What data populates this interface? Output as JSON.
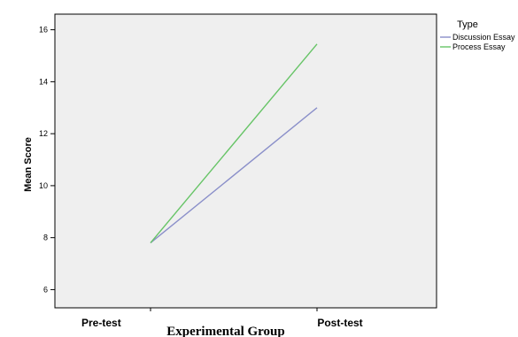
{
  "chart_data": {
    "type": "line",
    "title": "",
    "xlabel": "Experimental Group",
    "ylabel": "Mean Score",
    "categories": [
      "Pre-test",
      "Post-test"
    ],
    "ylim": [
      5.3,
      16.6
    ],
    "yticks": [
      6,
      8,
      10,
      12,
      14,
      16
    ],
    "grid": false,
    "legend": {
      "title": "Type",
      "position": "right"
    },
    "series": [
      {
        "name": "Discussion Essay",
        "color": "#8a8fc9",
        "values": [
          7.8,
          13.0
        ]
      },
      {
        "name": "Process Essay",
        "color": "#66c466",
        "values": [
          7.8,
          15.45
        ]
      }
    ],
    "plot_background": "#efefef"
  }
}
